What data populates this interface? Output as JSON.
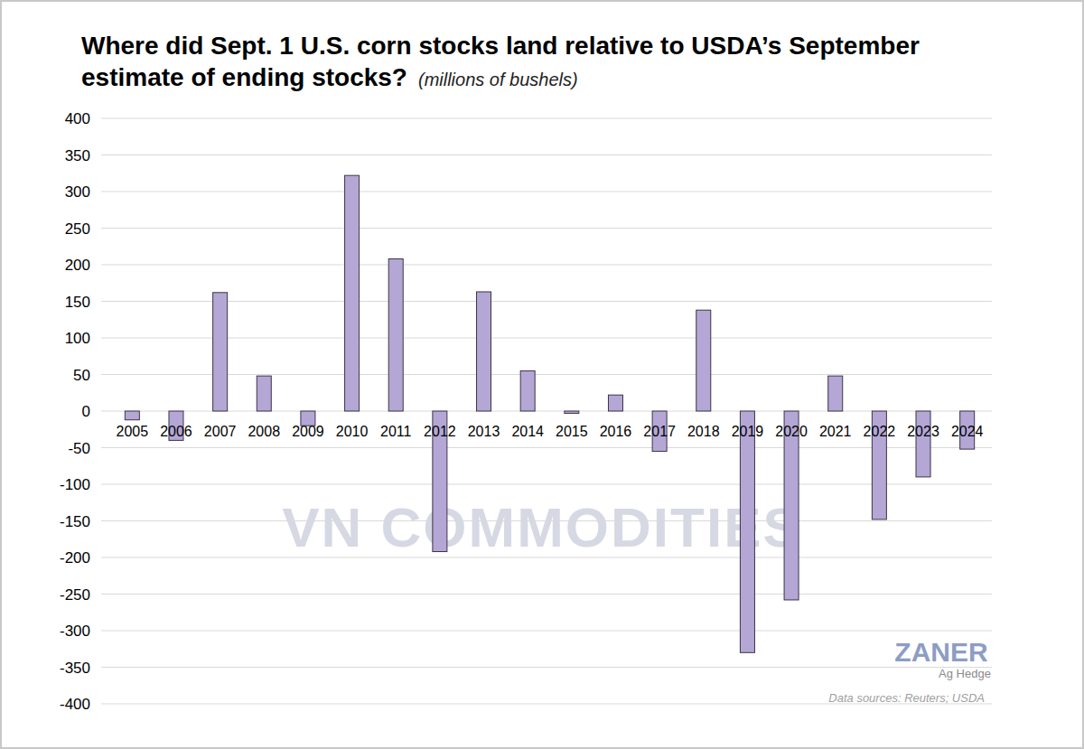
{
  "chart_data": {
    "type": "bar",
    "title": "Where did Sept. 1 U.S. corn stocks land relative to USDA’s September estimate of ending stocks?",
    "subtitle": "(millions of bushels)",
    "categories": [
      "2005",
      "2006",
      "2007",
      "2008",
      "2009",
      "2010",
      "2011",
      "2012",
      "2013",
      "2014",
      "2015",
      "2016",
      "2017",
      "2018",
      "2019",
      "2020",
      "2021",
      "2022",
      "2023",
      "2024"
    ],
    "values": [
      -12,
      -40,
      162,
      48,
      -20,
      322,
      208,
      -192,
      163,
      55,
      -3,
      22,
      -55,
      138,
      -330,
      -258,
      48,
      -148,
      -90,
      -52
    ],
    "color": "#b4a7d6",
    "ylim": [
      -400,
      400
    ],
    "yticks": [
      -400,
      -350,
      -300,
      -250,
      -200,
      -150,
      -100,
      -50,
      0,
      50,
      100,
      150,
      200,
      250,
      300,
      350,
      400
    ],
    "grid": true,
    "annotations": [
      "VN COMMODITIES",
      "ZANER",
      "Ag Hedge",
      "Data sources: Reuters; USDA"
    ]
  }
}
